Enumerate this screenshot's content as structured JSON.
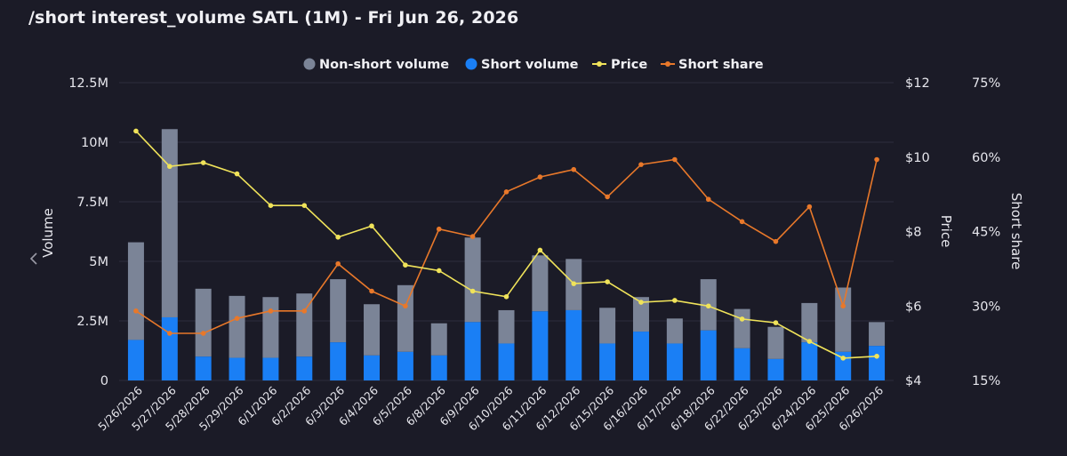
{
  "title": "/short interest_volume SATL (1M) - Fri Jun 26, 2026",
  "chart_data": {
    "type": "bar",
    "stacked": true,
    "categories": [
      "5/26/2026",
      "5/27/2026",
      "5/28/2026",
      "5/29/2026",
      "6/1/2026",
      "6/2/2026",
      "6/3/2026",
      "6/4/2026",
      "6/5/2026",
      "6/8/2026",
      "6/9/2026",
      "6/10/2026",
      "6/11/2026",
      "6/12/2026",
      "6/15/2026",
      "6/16/2026",
      "6/17/2026",
      "6/18/2026",
      "6/22/2026",
      "6/23/2026",
      "6/24/2026",
      "6/25/2026",
      "6/26/2026"
    ],
    "series": [
      {
        "name": "Non-short volume",
        "kind": "bar",
        "axis": "volume",
        "color": "#7b8497",
        "values": [
          4100000,
          7900000,
          2850000,
          2600000,
          2550000,
          2650000,
          2650000,
          2150000,
          2800000,
          1350000,
          3550000,
          1400000,
          2350000,
          2150000,
          1500000,
          1450000,
          1050000,
          2150000,
          1650000,
          1350000,
          1650000,
          2700000,
          1000000
        ]
      },
      {
        "name": "Short volume",
        "kind": "bar",
        "axis": "volume",
        "color": "#1a7ff5",
        "values": [
          1700000,
          2650000,
          1000000,
          950000,
          950000,
          1000000,
          1600000,
          1050000,
          1200000,
          1050000,
          2450000,
          1550000,
          2900000,
          2950000,
          1550000,
          2050000,
          1550000,
          2100000,
          1350000,
          900000,
          1600000,
          1200000,
          1450000
        ]
      },
      {
        "name": "Price",
        "kind": "line",
        "axis": "price",
        "color": "#f0e35a",
        "values": [
          10.7,
          9.75,
          9.85,
          9.55,
          8.7,
          8.7,
          7.85,
          8.15,
          7.1,
          6.95,
          6.4,
          6.25,
          7.5,
          6.6,
          6.65,
          6.1,
          6.15,
          6.0,
          5.65,
          5.55,
          5.05,
          4.6,
          4.65
        ]
      },
      {
        "name": "Short share",
        "kind": "line",
        "axis": "share",
        "color": "#e8782a",
        "values": [
          29,
          24.5,
          24.5,
          27.5,
          29,
          29,
          38.5,
          33,
          30,
          45.5,
          44,
          53,
          56,
          57.5,
          52,
          58.5,
          59.5,
          51.5,
          47,
          43,
          50,
          30,
          59.5
        ]
      }
    ],
    "axes": {
      "volume": {
        "label": "Volume",
        "range": [
          0,
          12500000
        ],
        "ticks": [
          "0",
          "2.5M",
          "5M",
          "7.5M",
          "10M",
          "12.5M"
        ]
      },
      "price": {
        "label": "Price",
        "range": [
          4,
          12
        ],
        "ticks": [
          "$4",
          "$6",
          "$8",
          "$10",
          "$12"
        ]
      },
      "share": {
        "label": "Short share",
        "range": [
          15,
          75
        ],
        "ticks": [
          "15%",
          "30%",
          "45%",
          "60%",
          "75%"
        ]
      }
    },
    "legend_position": "top-center",
    "grid": true
  }
}
